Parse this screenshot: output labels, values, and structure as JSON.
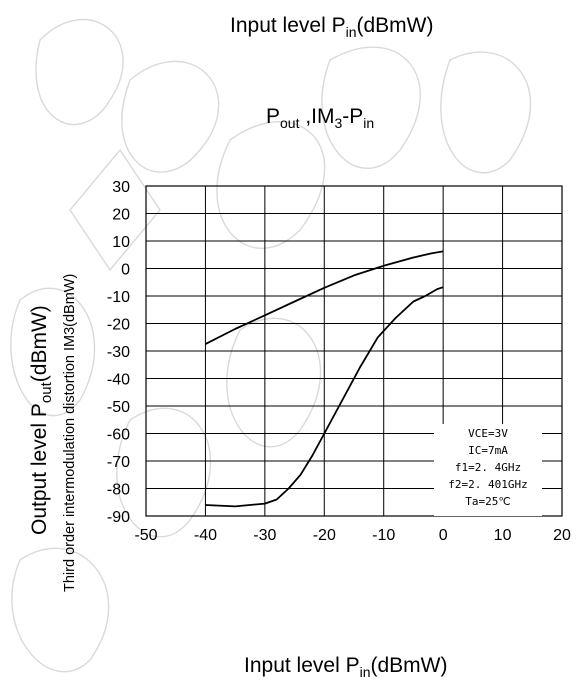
{
  "header": {
    "label_main": "Input level P",
    "label_sub": "in",
    "label_unit": "(dBmW)"
  },
  "chart_data": {
    "type": "line",
    "title": {
      "p1": "P",
      "s1": "out",
      "p2": " ,IM",
      "s2": "3",
      "p3": "-P",
      "s3": "in"
    },
    "xlabel": {
      "main": "Input level P",
      "sub": "in",
      "unit": "(dBmW)"
    },
    "ylabel": {
      "main": "Output level P",
      "sub": "out",
      "unit": "(dBmW)"
    },
    "ylabel2": "Third order intermodulation distortion IM3(dBmW)",
    "xlim": [
      -50,
      20
    ],
    "ylim": [
      -90,
      30
    ],
    "xticks": [
      -50,
      -40,
      -30,
      -20,
      -10,
      0,
      10,
      20
    ],
    "yticks": [
      30,
      20,
      10,
      0,
      -10,
      -20,
      -30,
      -40,
      -50,
      -60,
      -70,
      -80,
      -90
    ],
    "grid": true,
    "series": [
      {
        "values": [
          [
            -40,
            -27.5
          ],
          [
            -35,
            -22
          ],
          [
            -30,
            -17
          ],
          [
            -25,
            -12
          ],
          [
            -20,
            -7
          ],
          [
            -15,
            -2.5
          ],
          [
            -10,
            1
          ],
          [
            -5,
            4
          ],
          [
            -2,
            5.5
          ],
          [
            0,
            6.2
          ]
        ]
      },
      {
        "values": [
          [
            -40,
            -86
          ],
          [
            -35,
            -86.5
          ],
          [
            -30,
            -85.5
          ],
          [
            -28,
            -84
          ],
          [
            -26,
            -80
          ],
          [
            -24,
            -75
          ],
          [
            -22,
            -68
          ],
          [
            -20,
            -60
          ],
          [
            -17,
            -48
          ],
          [
            -14,
            -36
          ],
          [
            -11,
            -25
          ],
          [
            -8,
            -18
          ],
          [
            -5,
            -12
          ],
          [
            -3,
            -10
          ],
          [
            -1,
            -7.5
          ],
          [
            0,
            -6.8
          ]
        ]
      }
    ],
    "annotation": [
      "VCE=3V",
      "IC=7mA",
      "f1=2. 4GHz",
      "f2=2. 401GHz",
      "Ta=25℃"
    ]
  }
}
